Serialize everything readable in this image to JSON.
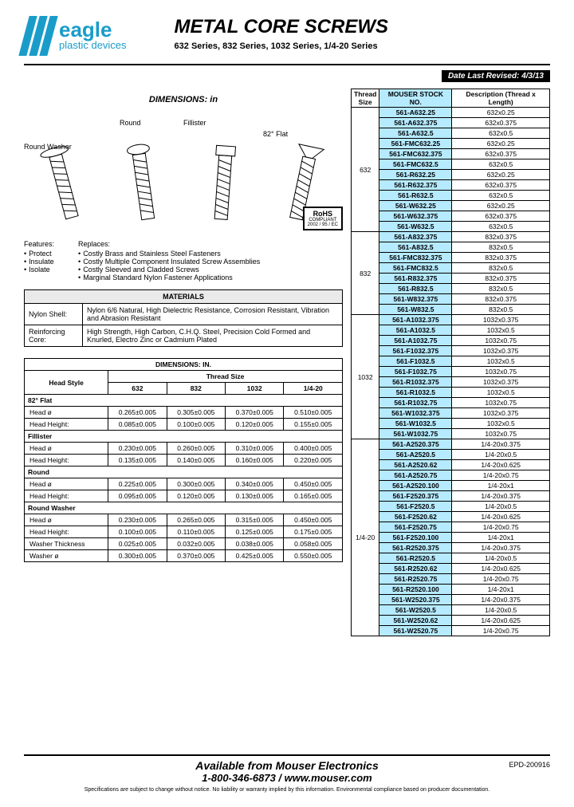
{
  "header": {
    "brand": "eagle",
    "brand_sub": "plastic devices",
    "title": "METAL CORE SCREWS",
    "subtitle": "632 Series, 832 Series, 1032 Series, 1/4-20 Series",
    "date_label": "Date Last Revised:  4/3/13"
  },
  "dimensions_title": "DIMENSIONS: in",
  "screw_labels": {
    "round_washer": "Round Washer",
    "round": "Round",
    "fillister": "Fillister",
    "flat": "82° Flat"
  },
  "rohs": {
    "main": "RoHS",
    "sub": "COMPLIANT",
    "code": "2002 / 95 / EC"
  },
  "features": {
    "hdr": "Features:",
    "items": [
      "Protect",
      "Insulate",
      "Isolate"
    ]
  },
  "replaces": {
    "hdr": "Replaces:",
    "items": [
      "Costly Brass and Stainless Steel Fasteners",
      "Costly Multiple Component Insulated Screw Assemblies",
      "Costly Sleeved and Cladded Screws",
      "Marginal Standard Nylon Fastener Applications"
    ]
  },
  "materials": {
    "title": "MATERIALS",
    "rows": [
      [
        "Nylon Shell:",
        "Nylon 6/6 Natural, High Dielectric Resistance, Corrosion Resistant, Vibration and Abrasion Resistant"
      ],
      [
        "Reinforcing Core:",
        "High Strength, High Carbon, C.H.Q. Steel, Precision Cold Formed and Knurled, Electro Zinc or Cadmium Plated"
      ]
    ]
  },
  "dim_table": {
    "title": "DIMENSIONS: IN.",
    "head_style": "Head Style",
    "thread_size": "Thread Size",
    "sizes": [
      "632",
      "832",
      "1032",
      "1/4-20"
    ],
    "sections": [
      {
        "name": "82° Flat",
        "rows": [
          [
            "Head ø",
            "0.265±0.005",
            "0.305±0.005",
            "0.370±0.005",
            "0.510±0.005"
          ],
          [
            "Head Height:",
            "0.085±0.005",
            "0.100±0.005",
            "0.120±0.005",
            "0.155±0.005"
          ]
        ]
      },
      {
        "name": "Fillister",
        "rows": [
          [
            "Head ø",
            "0.230±0.005",
            "0.260±0.005",
            "0.310±0.005",
            "0.400±0.005"
          ],
          [
            "Head Height:",
            "0.135±0.005",
            "0.140±0.005",
            "0.160±0.005",
            "0.220±0.005"
          ]
        ]
      },
      {
        "name": "Round",
        "rows": [
          [
            "Head ø",
            "0.225±0.005",
            "0.300±0.005",
            "0.340±0.005",
            "0.450±0.005"
          ],
          [
            "Head Height:",
            "0.095±0.005",
            "0.120±0.005",
            "0.130±0.005",
            "0.165±0.005"
          ]
        ]
      },
      {
        "name": "Round Washer",
        "rows": [
          [
            "Head ø",
            "0.230±0.005",
            "0.265±0.005",
            "0.315±0.005",
            "0.450±0.005"
          ],
          [
            "Head Height:",
            "0.100±0.005",
            "0.110±0.005",
            "0.125±0.005",
            "0.175±0.005"
          ],
          [
            "Washer Thickness",
            "0.025±0.005",
            "0.032±0.005",
            "0.038±0.005",
            "0.058±0.005"
          ],
          [
            "Washer ø",
            "0.300±0.005",
            "0.370±0.005",
            "0.425±0.005",
            "0.550±0.005"
          ]
        ]
      }
    ]
  },
  "parts": {
    "headers": {
      "thread": "Thread Size",
      "stock": "MOUSER STOCK NO.",
      "desc": "Description (Thread x Length)"
    },
    "groups": [
      {
        "thread": "632",
        "rows": [
          [
            "561-A632.25",
            "632x0.25"
          ],
          [
            "561-A632.375",
            "632x0.375"
          ],
          [
            "561-A632.5",
            "632x0.5"
          ],
          [
            "561-FMC632.25",
            "632x0.25"
          ],
          [
            "561-FMC632.375",
            "632x0.375"
          ],
          [
            "561-FMC632.5",
            "632x0.5"
          ],
          [
            "561-R632.25",
            "632x0.25"
          ],
          [
            "561-R632.375",
            "632x0.375"
          ],
          [
            "561-R632.5",
            "632x0.5"
          ],
          [
            "561-W632.25",
            "632x0.25"
          ],
          [
            "561-W632.375",
            "632x0.375"
          ],
          [
            "561-W632.5",
            "632x0.5"
          ]
        ]
      },
      {
        "thread": "832",
        "rows": [
          [
            "561-A832.375",
            "832x0.375"
          ],
          [
            "561-A832.5",
            "832x0.5"
          ],
          [
            "561-FMC832.375",
            "832x0.375"
          ],
          [
            "561-FMC832.5",
            "832x0.5"
          ],
          [
            "561-R832.375",
            "832x0.375"
          ],
          [
            "561-R832.5",
            "832x0.5"
          ],
          [
            "561-W832.375",
            "832x0.375"
          ],
          [
            "561-W832.5",
            "832x0.5"
          ]
        ]
      },
      {
        "thread": "1032",
        "rows": [
          [
            "561-A1032.375",
            "1032x0.375"
          ],
          [
            "561-A1032.5",
            "1032x0.5"
          ],
          [
            "561-A1032.75",
            "1032x0.75"
          ],
          [
            "561-F1032.375",
            "1032x0.375"
          ],
          [
            "561-F1032.5",
            "1032x0.5"
          ],
          [
            "561-F1032.75",
            "1032x0.75"
          ],
          [
            "561-R1032.375",
            "1032x0.375"
          ],
          [
            "561-R1032.5",
            "1032x0.5"
          ],
          [
            "561-R1032.75",
            "1032x0.75"
          ],
          [
            "561-W1032.375",
            "1032x0.375"
          ],
          [
            "561-W1032.5",
            "1032x0.5"
          ],
          [
            "561-W1032.75",
            "1032x0.75"
          ]
        ]
      },
      {
        "thread": "1/4-20",
        "rows": [
          [
            "561-A2520.375",
            "1/4-20x0.375"
          ],
          [
            "561-A2520.5",
            "1/4-20x0.5"
          ],
          [
            "561-A2520.62",
            "1/4-20x0.625"
          ],
          [
            "561-A2520.75",
            "1/4-20x0.75"
          ],
          [
            "561-A2520.100",
            "1/4-20x1"
          ],
          [
            "561-F2520.375",
            "1/4-20x0.375"
          ],
          [
            "561-F2520.5",
            "1/4-20x0.5"
          ],
          [
            "561-F2520.62",
            "1/4-20x0.625"
          ],
          [
            "561-F2520.75",
            "1/4-20x0.75"
          ],
          [
            "561-F2520.100",
            "1/4-20x1"
          ],
          [
            "561-R2520.375",
            "1/4-20x0.375"
          ],
          [
            "561-R2520.5",
            "1/4-20x0.5"
          ],
          [
            "561-R2520.62",
            "1/4-20x0.625"
          ],
          [
            "561-R2520.75",
            "1/4-20x0.75"
          ],
          [
            "561-R2520.100",
            "1/4-20x1"
          ],
          [
            "561-W2520.375",
            "1/4-20x0.375"
          ],
          [
            "561-W2520.5",
            "1/4-20x0.5"
          ],
          [
            "561-W2520.62",
            "1/4-20x0.625"
          ],
          [
            "561-W2520.75",
            "1/4-20x0.75"
          ]
        ]
      }
    ]
  },
  "footer": {
    "line1": "Available from Mouser Electronics",
    "line2": "1-800-346-6873 / www.mouser.com",
    "code": "EPD-200916",
    "disclaimer": "Specifications are subject to change without notice.   No liability or warranty implied by this information.   Environmental compliance based on producer documentation."
  }
}
